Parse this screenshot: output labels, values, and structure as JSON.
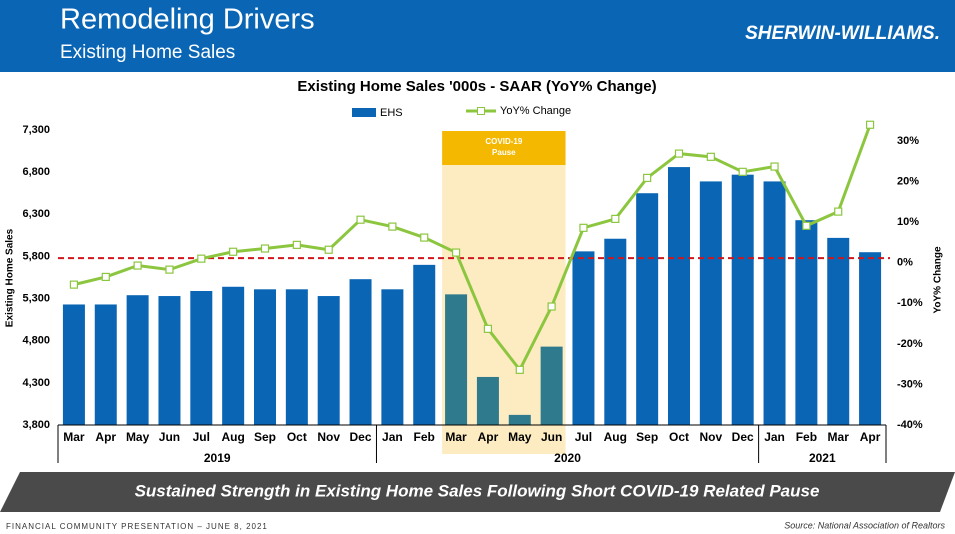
{
  "header": {
    "title": "Remodeling Drivers",
    "subtitle": "Existing Home Sales",
    "logo": "SHERWIN-WILLIAMS."
  },
  "chart_data": {
    "type": "bar_line",
    "title": "Existing Home Sales '000s - SAAR (YoY% Change)",
    "categories": [
      "Mar",
      "Apr",
      "May",
      "Jun",
      "Jul",
      "Aug",
      "Sep",
      "Oct",
      "Nov",
      "Dec",
      "Jan",
      "Feb",
      "Mar",
      "Apr",
      "May",
      "Jun",
      "Jul",
      "Aug",
      "Sep",
      "Oct",
      "Nov",
      "Dec",
      "Jan",
      "Feb",
      "Mar",
      "Apr"
    ],
    "year_groups": [
      {
        "label": "2019",
        "count": 10
      },
      {
        "label": "2020",
        "count": 12
      },
      {
        "label": "2021",
        "count": 4
      }
    ],
    "series": [
      {
        "name": "EHS",
        "type": "bar",
        "color": "#0a66b4",
        "highlight_color": "#2f7b8d",
        "values": [
          5230,
          5230,
          5340,
          5330,
          5390,
          5440,
          5410,
          5410,
          5330,
          5530,
          5410,
          5700,
          5350,
          4370,
          3920,
          4730,
          5860,
          6010,
          6550,
          6860,
          6690,
          6770,
          6690,
          6230,
          6020,
          5850
        ]
      },
      {
        "name": "YoY% Change",
        "type": "line",
        "axis": "y2",
        "color": "#8cc63f",
        "values": [
          -5.4,
          -3.5,
          -0.7,
          -1.7,
          1.0,
          2.7,
          3.5,
          4.4,
          3.2,
          10.6,
          8.9,
          6.2,
          2.5,
          -16.3,
          -26.4,
          -10.8,
          8.6,
          10.8,
          20.9,
          26.9,
          26.1,
          22.4,
          23.7,
          9.1,
          12.6,
          34.0
        ]
      }
    ],
    "ylabel": "Existing Home Sales",
    "y2label": "YoY% Change",
    "ylim": [
      3800,
      7300
    ],
    "yticks": [
      {
        "value": 3800,
        "label": "3,800"
      },
      {
        "value": 4300,
        "label": "4,300"
      },
      {
        "value": 4800,
        "label": "4,800"
      },
      {
        "value": 5300,
        "label": "5,300"
      },
      {
        "value": 5800,
        "label": "5,800"
      },
      {
        "value": 6300,
        "label": "6,300"
      },
      {
        "value": 6800,
        "label": "6,800"
      },
      {
        "value": 7300,
        "label": "7,300"
      }
    ],
    "y2lim": [
      -40,
      30
    ],
    "y2ticks": [
      {
        "value": -40,
        "label": "-40%"
      },
      {
        "value": -30,
        "label": "-30%"
      },
      {
        "value": -20,
        "label": "-20%"
      },
      {
        "value": -10,
        "label": "-10%"
      },
      {
        "value": 0,
        "label": "0%"
      },
      {
        "value": 10,
        "label": "10%"
      },
      {
        "value": 20,
        "label": "20%"
      },
      {
        "value": 30,
        "label": "30%"
      }
    ],
    "reference_line": {
      "value": 5780,
      "color": "#d0161c"
    },
    "annotation": {
      "lines": [
        "COVID-19",
        "Pause"
      ],
      "start_category": 12,
      "end_category": 15,
      "color": "#f5b800",
      "shade": "#fdebc2"
    }
  },
  "banner": "Sustained Strength in Existing Home Sales Following Short COVID-19 Related Pause",
  "footer": {
    "left": "FINANCIAL COMMUNITY PRESENTATION – JUNE 8, 2021",
    "source": "Source: National Association of Realtors"
  }
}
